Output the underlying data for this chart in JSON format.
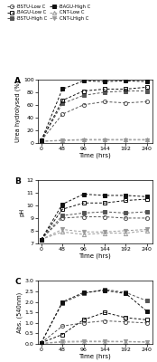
{
  "time": [
    0,
    48,
    96,
    144,
    192,
    240
  ],
  "panel_A": {
    "title": "A",
    "ylabel": "Urea hydrolysed (%)",
    "xlabel": "Time (hrs)",
    "ylim": [
      0,
      100
    ],
    "yticks": [
      0,
      20,
      40,
      60,
      80,
      100
    ]
  },
  "panel_B": {
    "title": "B",
    "ylabel": "pH",
    "xlabel": "Time (hrs)",
    "ylim": [
      7,
      12
    ],
    "yticks": [
      7,
      8,
      9,
      10,
      11,
      12
    ]
  },
  "panel_C": {
    "title": "C",
    "ylabel": "Abs. (540nm)",
    "xlabel": "Time (hrs)",
    "ylim": [
      0,
      3.0
    ],
    "yticks": [
      0.0,
      0.5,
      1.0,
      1.5,
      2.0,
      2.5,
      3.0
    ]
  },
  "series_A": {
    "BSTU-Low C": [
      3,
      45,
      60,
      65,
      63,
      65
    ],
    "BSTU-High C": [
      3,
      62,
      75,
      80,
      82,
      82
    ],
    "CNT-Low C": [
      2,
      4,
      5,
      5,
      5,
      5
    ],
    "CNT-LHigh C": [
      2,
      3,
      4,
      4,
      4,
      4
    ],
    "BAGU-Low C": [
      3,
      67,
      82,
      85,
      85,
      88
    ],
    "BAGU-High C": [
      3,
      85,
      98,
      97,
      98,
      97
    ]
  },
  "series_B": {
    "BSTU-Low C": [
      7.3,
      9.0,
      9.1,
      9.1,
      9.0,
      9.0
    ],
    "BSTU-High C": [
      7.3,
      9.2,
      9.4,
      9.5,
      9.4,
      9.5
    ],
    "CNT-Low C": [
      7.3,
      7.9,
      7.7,
      7.8,
      7.8,
      8.0
    ],
    "CNT-LHigh C": [
      7.3,
      8.1,
      7.9,
      7.9,
      8.0,
      8.1
    ],
    "BAGU-Low C": [
      7.3,
      9.7,
      10.2,
      10.2,
      10.4,
      10.5
    ],
    "BAGU-High C": [
      7.3,
      10.1,
      10.9,
      10.8,
      10.8,
      10.7
    ]
  },
  "series_C": {
    "BSTU-Low C": [
      0.05,
      0.85,
      1.0,
      1.1,
      1.05,
      1.0
    ],
    "BSTU-High C": [
      0.05,
      1.95,
      2.4,
      2.6,
      2.45,
      2.05
    ],
    "CNT-Low C": [
      0.02,
      0.08,
      0.1,
      0.1,
      0.1,
      0.08
    ],
    "CNT-LHigh C": [
      0.02,
      0.12,
      0.13,
      0.13,
      0.12,
      0.1
    ],
    "BAGU-Low C": [
      0.05,
      0.45,
      1.15,
      1.5,
      1.25,
      1.15
    ],
    "BAGU-High C": [
      0.05,
      2.0,
      2.45,
      2.55,
      2.4,
      1.55
    ]
  },
  "series_styles": {
    "BSTU-Low C": {
      "color": "#555555",
      "marker": "o",
      "filled": false
    },
    "BSTU-High C": {
      "color": "#555555",
      "marker": "s",
      "filled": true
    },
    "CNT-Low C": {
      "color": "#999999",
      "marker": "^",
      "filled": false
    },
    "CNT-LHigh C": {
      "color": "#999999",
      "marker": "v",
      "filled": true
    },
    "BAGU-Low C": {
      "color": "#111111",
      "marker": "s",
      "filled": false
    },
    "BAGU-High C": {
      "color": "#111111",
      "marker": "s",
      "filled": true
    }
  },
  "legend": [
    {
      "label": "BSTU-Low C",
      "color": "#555555",
      "marker": "o",
      "filled": false
    },
    {
      "label": "BAGU-Low C",
      "color": "#111111",
      "marker": "s",
      "filled": false
    },
    {
      "label": "BSTU-High C",
      "color": "#555555",
      "marker": "s",
      "filled": true
    },
    {
      "label": "BAGU-High C",
      "color": "#111111",
      "marker": "s",
      "filled": true
    },
    {
      "label": "CNT-Low C",
      "color": "#999999",
      "marker": "^",
      "filled": false
    },
    {
      "label": "CNT-LHigh C",
      "color": "#999999",
      "marker": "v",
      "filled": true
    }
  ]
}
